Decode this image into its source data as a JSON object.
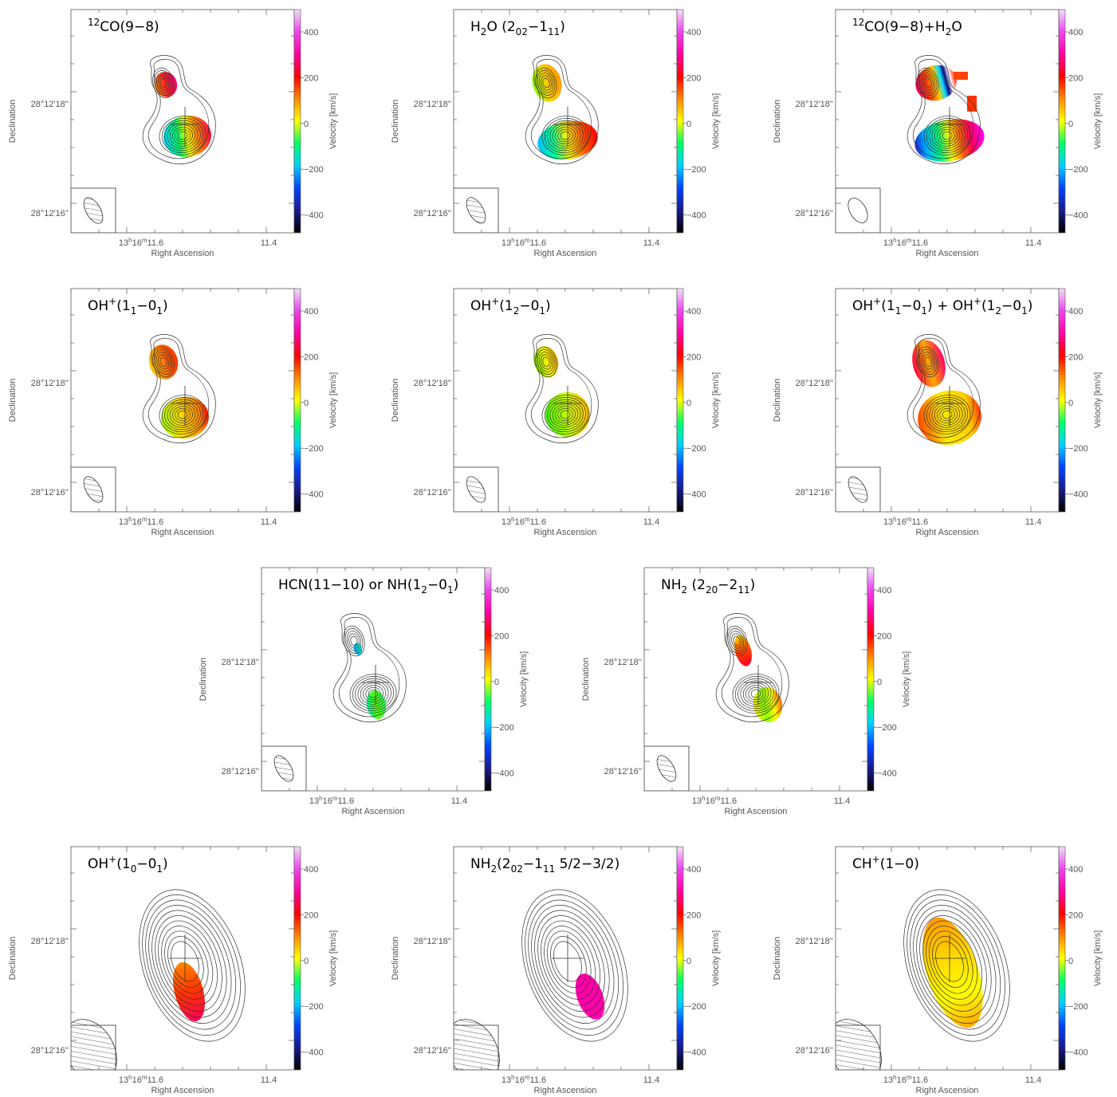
{
  "figure": {
    "colorbar": {
      "label": "Velocity [km/s]",
      "ticks": [
        "400",
        "200",
        "0",
        "−200",
        "−400"
      ],
      "stops": [
        "#000000",
        "#1a1a8c",
        "#0044ff",
        "#00cfff",
        "#00ff66",
        "#ffff00",
        "#ff8800",
        "#ff0000",
        "#ff00a0",
        "#ee44ee",
        "#f0e0f8"
      ]
    },
    "axes": {
      "xlabel": "Right Ascension",
      "ylabel": "Declination",
      "xtick_left": "13h16m11s.6",
      "xtick_right": "11s.4",
      "ytick_top": "28°12'18''",
      "ytick_bottom": "28°12'16''"
    },
    "panels": [
      {
        "title": [
          {
            "t": "12",
            "s": "sup"
          },
          {
            "t": "CO(9−8)"
          }
        ],
        "map": "co"
      },
      {
        "title": [
          {
            "t": "H"
          },
          {
            "t": "2",
            "s": "sub"
          },
          {
            "t": "O (2"
          },
          {
            "t": "02",
            "s": "sub"
          },
          {
            "t": "−1"
          },
          {
            "t": "11",
            "s": "sub"
          },
          {
            "t": ")"
          }
        ],
        "map": "h2o"
      },
      {
        "title": [
          {
            "t": "12",
            "s": "sup"
          },
          {
            "t": "CO(9−8)+H"
          },
          {
            "t": "2",
            "s": "sub"
          },
          {
            "t": "O"
          }
        ],
        "map": "combo"
      },
      {
        "title": [
          {
            "t": "OH"
          },
          {
            "t": "+",
            "s": "sup"
          },
          {
            "t": "(1"
          },
          {
            "t": "1",
            "s": "sub"
          },
          {
            "t": "−0"
          },
          {
            "t": "1",
            "s": "sub"
          },
          {
            "t": ")"
          }
        ],
        "map": "oh1"
      },
      {
        "title": [
          {
            "t": "OH"
          },
          {
            "t": "+",
            "s": "sup"
          },
          {
            "t": "(1"
          },
          {
            "t": "2",
            "s": "sub"
          },
          {
            "t": "−0"
          },
          {
            "t": "1",
            "s": "sub"
          },
          {
            "t": ")"
          }
        ],
        "map": "oh2"
      },
      {
        "title": [
          {
            "t": "OH"
          },
          {
            "t": "+",
            "s": "sup"
          },
          {
            "t": "(1"
          },
          {
            "t": "1",
            "s": "sub"
          },
          {
            "t": "−0"
          },
          {
            "t": "1",
            "s": "sub"
          },
          {
            "t": ") + OH"
          },
          {
            "t": "+",
            "s": "sup"
          },
          {
            "t": "(1"
          },
          {
            "t": "2",
            "s": "sub"
          },
          {
            "t": "−0"
          },
          {
            "t": "1",
            "s": "sub"
          },
          {
            "t": ")"
          }
        ],
        "map": "ohsum"
      },
      {
        "title": [
          {
            "t": "HCN(11−10) or NH(1"
          },
          {
            "t": "2",
            "s": "sub"
          },
          {
            "t": "−0"
          },
          {
            "t": "1",
            "s": "sub"
          },
          {
            "t": ")"
          }
        ],
        "map": "hcn"
      },
      {
        "title": [
          {
            "t": "NH"
          },
          {
            "t": "2",
            "s": "sub"
          },
          {
            "t": " (2"
          },
          {
            "t": "20",
            "s": "sub"
          },
          {
            "t": "−2"
          },
          {
            "t": "11",
            "s": "sub"
          },
          {
            "t": ")"
          }
        ],
        "map": "nh2a"
      },
      {
        "title": [
          {
            "t": "OH"
          },
          {
            "t": "+",
            "s": "sup"
          },
          {
            "t": "(1"
          },
          {
            "t": "0",
            "s": "sub"
          },
          {
            "t": "−0"
          },
          {
            "t": "1",
            "s": "sub"
          },
          {
            "t": ")"
          }
        ],
        "map": "oh0"
      },
      {
        "title": [
          {
            "t": "NH"
          },
          {
            "t": "2",
            "s": "sub"
          },
          {
            "t": "(2"
          },
          {
            "t": "02",
            "s": "sub"
          },
          {
            "t": "−1"
          },
          {
            "t": "11",
            "s": "sub"
          },
          {
            "t": " 5/2−3/2)"
          }
        ],
        "map": "nh2b"
      },
      {
        "title": [
          {
            "t": "CH"
          },
          {
            "t": "+",
            "s": "sup"
          },
          {
            "t": "(1−0)"
          }
        ],
        "map": "ch"
      }
    ]
  }
}
